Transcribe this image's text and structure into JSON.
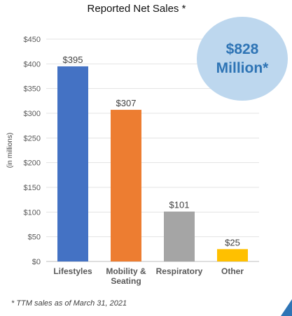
{
  "chart_data": {
    "type": "bar",
    "title": "Reported Net Sales *",
    "ylabel": "(in millions)",
    "xlabel": "",
    "categories": [
      "Lifestyles",
      "Mobility & Seating",
      "Respiratory",
      "Other"
    ],
    "category_lines": [
      [
        "Lifestyles"
      ],
      [
        "Mobility &",
        "Seating"
      ],
      [
        "Respiratory"
      ],
      [
        "Other"
      ]
    ],
    "values": [
      395,
      307,
      101,
      25
    ],
    "data_labels": [
      "$395",
      "$307",
      "$101",
      "$25"
    ],
    "bar_colors": [
      "#4472c4",
      "#ed7d31",
      "#a5a5a5",
      "#ffc000"
    ],
    "ylim": [
      0,
      450
    ],
    "yticks": [
      0,
      50,
      100,
      150,
      200,
      250,
      300,
      350,
      400,
      450
    ],
    "ytick_labels": [
      "$0",
      "$50",
      "$100",
      "$150",
      "$200",
      "$250",
      "$300",
      "$350",
      "$400",
      "$450"
    ],
    "grid": true,
    "legend": false
  },
  "callout": {
    "line1": "$828",
    "line2": "Million*",
    "color": "#2e74b5",
    "fill": "#bdd7ee"
  },
  "footnote": "* TTM sales as of March 31, 2021"
}
